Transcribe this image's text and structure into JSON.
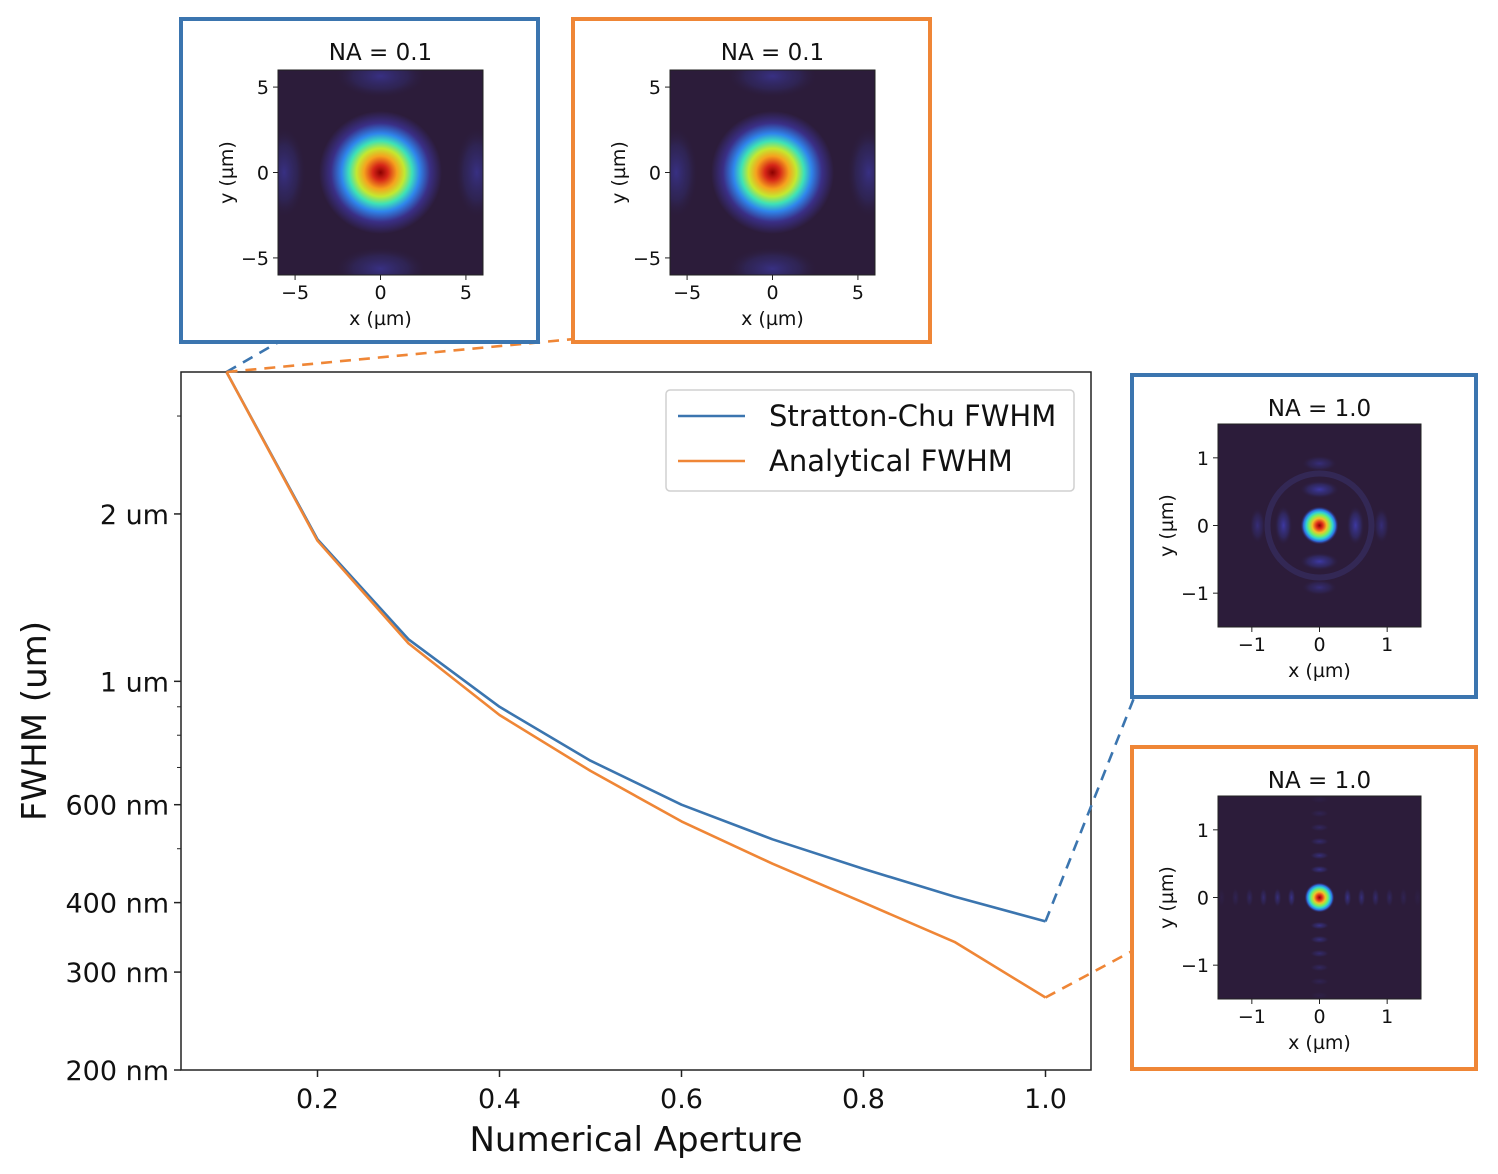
{
  "chart_data": {
    "type": "line",
    "xlabel": "Numerical Aperture",
    "ylabel": "FWHM (um)",
    "yscale": "log",
    "xlim": [
      0.05,
      1.05
    ],
    "ylim": [
      0.2,
      3.6
    ],
    "x_ticks": [
      "0.2",
      "0.4",
      "0.6",
      "0.8",
      "1.0"
    ],
    "x_tick_values": [
      0.2,
      0.4,
      0.6,
      0.8,
      1.0
    ],
    "y_ticks": [
      "200 nm",
      "300 nm",
      "400 nm",
      "600 nm",
      "1 um",
      "2 um"
    ],
    "y_tick_values": [
      0.2,
      0.3,
      0.4,
      0.6,
      1.0,
      2.0
    ],
    "legend_position": "top-right",
    "grid": false,
    "series": [
      {
        "name": "Stratton-Chu FWHM",
        "color": "#3b75af",
        "x": [
          0.1,
          0.2,
          0.3,
          0.4,
          0.5,
          0.6,
          0.7,
          0.8,
          0.9,
          1.0
        ],
        "y": [
          3.6,
          1.8,
          1.19,
          0.9,
          0.72,
          0.6,
          0.52,
          0.46,
          0.41,
          0.37
        ]
      },
      {
        "name": "Analytical FWHM",
        "color": "#ef8636",
        "x": [
          0.1,
          0.2,
          0.3,
          0.4,
          0.5,
          0.6,
          0.7,
          0.8,
          0.9,
          1.0
        ],
        "y": [
          3.6,
          1.79,
          1.17,
          0.87,
          0.69,
          0.56,
          0.47,
          0.4,
          0.34,
          0.27
        ]
      }
    ]
  },
  "insets": [
    {
      "id": "nan01-strattonchu",
      "border_color": "#3b75af",
      "title": "NA = 0.1",
      "xlabel": "x (µm)",
      "ylabel": "y (µm)",
      "ticks": [
        "−5",
        "0",
        "5"
      ],
      "extent_um": 6,
      "pattern": "wide",
      "links_to": {
        "series": 0,
        "na": 0.1
      }
    },
    {
      "id": "na01-analytical",
      "border_color": "#ef8636",
      "title": "NA = 0.1",
      "xlabel": "x (µm)",
      "ylabel": "y (µm)",
      "ticks": [
        "−5",
        "0",
        "5"
      ],
      "extent_um": 6,
      "pattern": "wide",
      "links_to": {
        "series": 1,
        "na": 0.1
      }
    },
    {
      "id": "na10-strattonchu",
      "border_color": "#3b75af",
      "title": "NA = 1.0",
      "xlabel": "x (µm)",
      "ylabel": "y (µm)",
      "ticks": [
        "−1",
        "0",
        "1"
      ],
      "extent_um": 1.5,
      "pattern": "rings",
      "links_to": {
        "series": 0,
        "na": 1.0
      }
    },
    {
      "id": "na10-analytical",
      "border_color": "#ef8636",
      "title": "NA = 1.0",
      "xlabel": "x (µm)",
      "ylabel": "y (µm)",
      "ticks": [
        "−1",
        "0",
        "1"
      ],
      "extent_um": 1.5,
      "pattern": "cross",
      "links_to": {
        "series": 1,
        "na": 1.0
      }
    }
  ]
}
